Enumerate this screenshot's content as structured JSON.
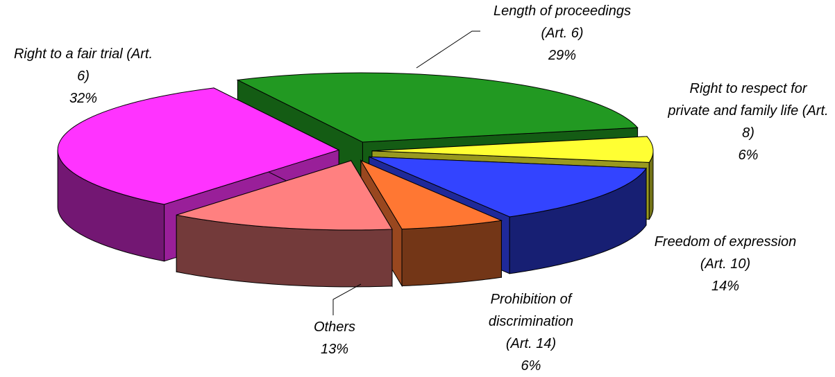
{
  "chart_data": {
    "type": "pie3d",
    "categories": [
      "Right to a fair trial (Art. 6)",
      "Length of proceedings (Art. 6)",
      "Right to respect for private and family life (Art. 8)",
      "Freedom of expression (Art. 10)",
      "Prohibition of discrimination (Art. 14)",
      "Others"
    ],
    "values": [
      32,
      29,
      6,
      14,
      6,
      13
    ],
    "value_labels": [
      "32%",
      "29%",
      "6%",
      "14%",
      "6%",
      "13%"
    ],
    "colors": [
      "#ff33ff",
      "#229922",
      "#ffff33",
      "#3344ff",
      "#ff7733",
      "#ff8080"
    ]
  }
}
